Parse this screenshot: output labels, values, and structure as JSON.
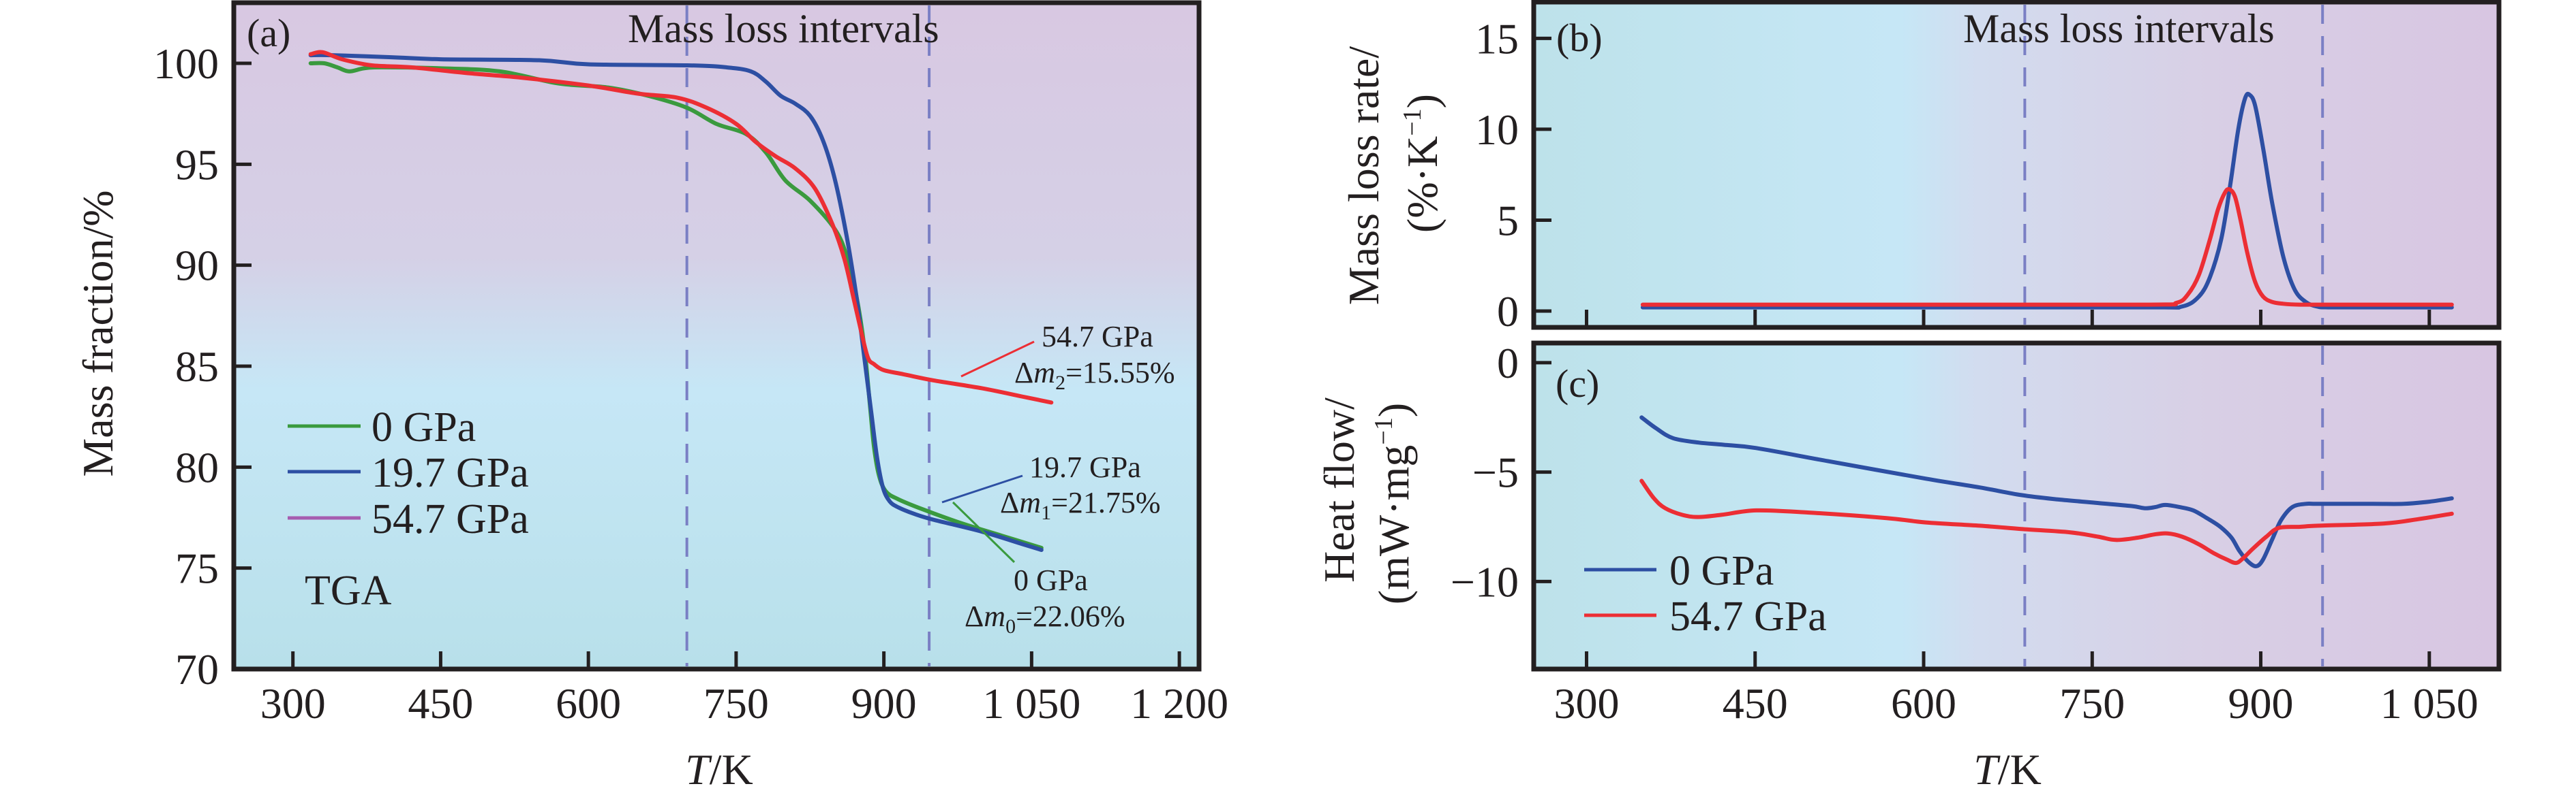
{
  "colors": {
    "green": "#3a9a3e",
    "blue": "#2d4fa3",
    "red": "#ec2e34",
    "purple_legend": "#a65cb0",
    "dashed": "#7a7fc4",
    "bg_purple": "#d8c8e2",
    "bg_blue": "#c4e6f4",
    "bg_teal": "#bde2ea"
  },
  "chart_data": [
    {
      "id": "a",
      "type": "line",
      "panel_label": "(a)",
      "title": "",
      "annotation_top": "Mass loss intervals",
      "xlabel_italic": "T",
      "xlabel_rest": "/K",
      "ylabel": "Mass fraction/%",
      "xlim": [
        240,
        1220
      ],
      "ylim": [
        70,
        103
      ],
      "xticks": [
        300,
        450,
        600,
        750,
        900,
        1050,
        1200
      ],
      "xtick_labels": [
        "300",
        "450",
        "600",
        "750",
        "900",
        "1 050",
        "1 200"
      ],
      "yticks": [
        70,
        75,
        80,
        85,
        90,
        95,
        100
      ],
      "ytick_labels": [
        "70",
        "75",
        "80",
        "85",
        "90",
        "95",
        "100"
      ],
      "vlines": [
        700,
        946
      ],
      "background": "gradient purple (top) to light blue (bottom)",
      "text_label": "TGA",
      "legend": {
        "placement": "lower-left",
        "entries": [
          {
            "label": "0 GPa",
            "color": "#3a9a3e"
          },
          {
            "label": "19.7 GPa",
            "color": "#2d4fa3"
          },
          {
            "label": "54.7 GPa",
            "color": "#a65cb0"
          }
        ]
      },
      "series": [
        {
          "name": "0 GPa",
          "color": "#3a9a3e",
          "x": [
            318,
            332,
            345,
            357,
            372,
            390,
            450,
            510,
            570,
            620,
            660,
            700,
            730,
            760,
            780,
            800,
            825,
            850,
            862,
            872,
            880,
            886,
            890,
            895,
            902,
            915,
            940,
            980,
            1020,
            1060
          ],
          "y": [
            100.0,
            100.0,
            99.8,
            99.6,
            99.75,
            99.8,
            99.75,
            99.6,
            99.0,
            98.8,
            98.4,
            97.8,
            97.0,
            96.5,
            95.6,
            94.2,
            93.2,
            91.8,
            90.5,
            88.5,
            86.0,
            83.0,
            81.0,
            79.6,
            78.8,
            78.4,
            77.9,
            77.2,
            76.6,
            76.0
          ]
        },
        {
          "name": "19.7 GPa",
          "color": "#2d4fa3",
          "x": [
            318,
            340,
            400,
            450,
            550,
            600,
            700,
            740,
            765,
            780,
            795,
            810,
            825,
            838,
            850,
            862,
            872,
            880,
            887,
            893,
            899,
            906,
            915,
            930,
            950,
            1000,
            1040,
            1060
          ],
          "y": [
            100.4,
            100.4,
            100.3,
            100.2,
            100.15,
            99.95,
            99.9,
            99.8,
            99.6,
            99.1,
            98.4,
            98.0,
            97.4,
            96.2,
            94.3,
            91.5,
            88.5,
            85.5,
            82.8,
            80.5,
            79.0,
            78.3,
            78.0,
            77.7,
            77.4,
            76.8,
            76.2,
            75.9
          ]
        },
        {
          "name": "54.7 GPa",
          "color": "#ec2e34",
          "x": [
            318,
            330,
            350,
            380,
            420,
            480,
            530,
            600,
            650,
            690,
            720,
            750,
            770,
            790,
            810,
            830,
            848,
            860,
            870,
            878,
            884,
            890,
            900,
            920,
            950,
            1000,
            1040,
            1070
          ],
          "y": [
            100.45,
            100.55,
            100.2,
            99.9,
            99.8,
            99.5,
            99.3,
            98.9,
            98.5,
            98.3,
            97.8,
            97.0,
            96.1,
            95.4,
            94.8,
            93.8,
            92.0,
            90.3,
            88.2,
            86.5,
            85.4,
            85.1,
            84.8,
            84.6,
            84.3,
            83.9,
            83.5,
            83.2
          ]
        }
      ],
      "annotations": [
        {
          "line1": "54.7 GPa",
          "delta": "Δ",
          "var": "m",
          "sub": "2",
          "value": "=15.55%",
          "color": "#ec2e34"
        },
        {
          "line1": "19.7 GPa",
          "delta": "Δ",
          "var": "m",
          "sub": "1",
          "value": "=21.75%",
          "color": "#2d4fa3"
        },
        {
          "line1": "0 GPa",
          "delta": "Δ",
          "var": "m",
          "sub": "0",
          "value": "=22.06%",
          "color": "#3a9a3e"
        }
      ]
    },
    {
      "id": "b",
      "type": "line",
      "panel_label": "(b)",
      "annotation_top": "Mass loss intervals",
      "ylabel_line1": "Mass loss rate/",
      "ylabel_line2": "(%·K",
      "ylabel_line2_sup": "−1",
      "ylabel_line2_end": ")",
      "xlim": [
        253,
        1112
      ],
      "ylim": [
        -0.9,
        17
      ],
      "xticks": [
        300,
        450,
        600,
        750,
        900,
        1050
      ],
      "yticks": [
        0,
        5,
        10,
        15
      ],
      "ytick_labels": [
        "0",
        "5",
        "10",
        "15"
      ],
      "vlines": [
        690,
        955
      ],
      "background": "gradient light blue (left) to purple (right)",
      "series": [
        {
          "name": "0 GPa",
          "color": "#2d4fa3",
          "x": [
            350,
            600,
            800,
            830,
            845,
            855,
            865,
            873,
            880,
            886,
            890,
            895,
            902,
            910,
            920,
            930,
            940,
            950,
            960,
            1000,
            1070
          ],
          "y": [
            0.2,
            0.2,
            0.2,
            0.25,
            0.8,
            1.9,
            4.0,
            7.0,
            10.0,
            11.7,
            11.9,
            11.3,
            9.0,
            6.0,
            3.0,
            1.2,
            0.5,
            0.25,
            0.2,
            0.2,
            0.2
          ]
        },
        {
          "name": "54.7 GPa",
          "color": "#ec2e34",
          "x": [
            350,
            600,
            800,
            825,
            835,
            845,
            855,
            862,
            868,
            872,
            877,
            882,
            888,
            895,
            902,
            910,
            920,
            935,
            960,
            1000,
            1070
          ],
          "y": [
            0.35,
            0.35,
            0.35,
            0.45,
            0.9,
            2.0,
            4.0,
            5.6,
            6.5,
            6.7,
            6.3,
            5.0,
            3.2,
            1.6,
            0.8,
            0.5,
            0.4,
            0.35,
            0.35,
            0.35,
            0.35
          ]
        }
      ]
    },
    {
      "id": "c",
      "type": "line",
      "panel_label": "(c)",
      "xlabel_italic": "T",
      "xlabel_rest": "/K",
      "ylabel_line1": "Heat flow/",
      "ylabel_line2": "(mW·mg",
      "ylabel_line2_sup": "−1",
      "ylabel_line2_end": ")",
      "xlim": [
        253,
        1112
      ],
      "ylim": [
        -14,
        0.9
      ],
      "xticks": [
        300,
        450,
        600,
        750,
        900,
        1050
      ],
      "xtick_labels": [
        "300",
        "450",
        "600",
        "750",
        "900",
        "1 050"
      ],
      "yticks": [
        0,
        -5,
        -10
      ],
      "ytick_labels": [
        "0",
        "−5",
        "−10"
      ],
      "vlines": [
        690,
        955
      ],
      "background": "gradient light blue (left) to purple (right)",
      "legend": {
        "placement": "lower-left",
        "entries": [
          {
            "label": "0 GPa",
            "color": "#2d4fa3"
          },
          {
            "label": "54.7 GPa",
            "color": "#ec2e34"
          }
        ]
      },
      "series": [
        {
          "name": "0 GPa",
          "color": "#2d4fa3",
          "x": [
            349,
            362,
            377,
            400,
            422,
            451,
            515,
            602,
            650,
            687,
            720,
            753,
            785,
            797,
            806,
            815,
            828,
            840,
            852,
            864,
            874,
            881,
            889,
            896,
            902,
            910,
            918,
            928,
            940,
            951,
            1000,
            1027,
            1050,
            1070
          ],
          "y": [
            -2.5,
            -3.0,
            -3.45,
            -3.65,
            -3.75,
            -3.9,
            -4.5,
            -5.3,
            -5.7,
            -6.05,
            -6.25,
            -6.4,
            -6.55,
            -6.65,
            -6.6,
            -6.5,
            -6.6,
            -6.75,
            -7.1,
            -7.5,
            -8.0,
            -8.6,
            -9.1,
            -9.3,
            -9.0,
            -8.1,
            -7.2,
            -6.6,
            -6.45,
            -6.45,
            -6.45,
            -6.45,
            -6.35,
            -6.2
          ]
        },
        {
          "name": "54.7 GPa",
          "color": "#ec2e34",
          "x": [
            349,
            360,
            370,
            385,
            399,
            420,
            451,
            498,
            567,
            602,
            650,
            687,
            730,
            755,
            771,
            790,
            805,
            817,
            830,
            845,
            858,
            870,
            878,
            884,
            893,
            905,
            916,
            935,
            951,
            1009,
            1040,
            1070
          ],
          "y": [
            -5.4,
            -6.2,
            -6.65,
            -6.95,
            -7.05,
            -6.95,
            -6.75,
            -6.85,
            -7.1,
            -7.3,
            -7.45,
            -7.6,
            -7.75,
            -7.95,
            -8.1,
            -8.0,
            -7.85,
            -7.8,
            -7.95,
            -8.3,
            -8.7,
            -9.0,
            -9.15,
            -8.95,
            -8.5,
            -7.95,
            -7.55,
            -7.5,
            -7.45,
            -7.35,
            -7.15,
            -6.9
          ]
        }
      ]
    }
  ],
  "shared_xlabel": "T/K"
}
